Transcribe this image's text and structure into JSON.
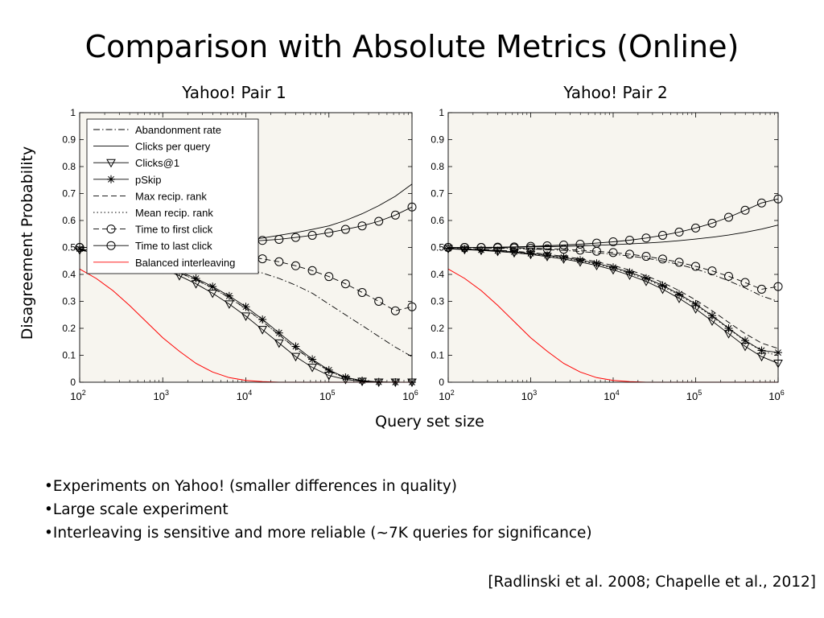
{
  "slide": {
    "title": "Comparison with Absolute Metrics (Online)",
    "bullets": [
      "•Experiments on Yahoo!  (smaller differences in quality)",
      "•Large scale experiment",
      "•Interleaving is sensitive and more reliable  (~7K queries for significance)"
    ],
    "citation": "[Radlinski et al. 2008; Chapelle et al., 2012]"
  },
  "chart_data": [
    {
      "type": "line",
      "title": "Yahoo! Pair 1",
      "xlabel": "Query set size",
      "ylabel": "Disagreement Probability",
      "xscale": "log",
      "xlim": [
        100,
        1000000
      ],
      "ylim": [
        0,
        1
      ],
      "xticks": [
        {
          "base": "10",
          "exp": "2"
        },
        {
          "base": "10",
          "exp": "3"
        },
        {
          "base": "10",
          "exp": "4"
        },
        {
          "base": "10",
          "exp": "5"
        },
        {
          "base": "10",
          "exp": "6"
        }
      ],
      "yticks": [
        "0",
        "0.1",
        "0.2",
        "0.3",
        "0.4",
        "0.5",
        "0.6",
        "0.7",
        "0.8",
        "0.9",
        "1"
      ],
      "legend_position": "top-left",
      "x": [
        100,
        158,
        251,
        398,
        631,
        1000,
        1585,
        2512,
        3981,
        6310,
        10000,
        15849,
        25119,
        39811,
        63096,
        100000,
        158489,
        251189,
        398107,
        630957,
        1000000
      ],
      "series": [
        {
          "name": "Abandonment rate",
          "style": "dashdot",
          "marker": "none",
          "color": "#000000",
          "values": [
            0.49,
            0.485,
            0.48,
            0.475,
            0.47,
            0.465,
            0.46,
            0.45,
            0.44,
            0.43,
            0.42,
            0.405,
            0.385,
            0.36,
            0.33,
            0.29,
            0.25,
            0.21,
            0.17,
            0.13,
            0.095
          ]
        },
        {
          "name": "Clicks per query",
          "style": "solid",
          "marker": "none",
          "color": "#000000",
          "values": [
            0.5,
            0.5,
            0.5,
            0.502,
            0.504,
            0.507,
            0.51,
            0.513,
            0.517,
            0.522,
            0.528,
            0.535,
            0.545,
            0.555,
            0.567,
            0.58,
            0.6,
            0.625,
            0.655,
            0.69,
            0.735
          ]
        },
        {
          "name": "Clicks@1",
          "style": "solid",
          "marker": "triangle",
          "color": "#000000",
          "values": [
            0.49,
            0.48,
            0.47,
            0.455,
            0.44,
            0.42,
            0.395,
            0.365,
            0.33,
            0.29,
            0.245,
            0.195,
            0.145,
            0.095,
            0.055,
            0.025,
            0.01,
            0.003,
            0.0,
            0.0,
            0.0
          ]
        },
        {
          "name": "pSkip",
          "style": "solid",
          "marker": "star",
          "color": "#000000",
          "values": [
            0.495,
            0.485,
            0.475,
            0.462,
            0.448,
            0.43,
            0.41,
            0.385,
            0.355,
            0.32,
            0.28,
            0.233,
            0.183,
            0.133,
            0.085,
            0.045,
            0.018,
            0.006,
            0.001,
            0.0,
            0.0
          ]
        },
        {
          "name": "Max recip. rank",
          "style": "dashed",
          "marker": "none",
          "color": "#000000",
          "values": [
            0.493,
            0.483,
            0.473,
            0.46,
            0.446,
            0.428,
            0.406,
            0.38,
            0.35,
            0.314,
            0.273,
            0.226,
            0.176,
            0.126,
            0.08,
            0.042,
            0.016,
            0.005,
            0.001,
            0.0,
            0.0
          ]
        },
        {
          "name": "Mean recip. rank",
          "style": "dotted",
          "marker": "none",
          "color": "#000000",
          "values": [
            0.492,
            0.482,
            0.472,
            0.459,
            0.445,
            0.427,
            0.405,
            0.379,
            0.349,
            0.313,
            0.272,
            0.225,
            0.175,
            0.125,
            0.079,
            0.041,
            0.015,
            0.005,
            0.001,
            0.0,
            0.0
          ]
        },
        {
          "name": "Time to first click",
          "style": "dashed",
          "marker": "circle",
          "color": "#000000",
          "values": [
            0.5,
            0.5,
            0.5,
            0.497,
            0.494,
            0.49,
            0.487,
            0.483,
            0.478,
            0.472,
            0.465,
            0.458,
            0.447,
            0.432,
            0.414,
            0.392,
            0.365,
            0.333,
            0.3,
            0.265,
            0.28
          ]
        },
        {
          "name": "Time to last click",
          "style": "solid",
          "marker": "circle",
          "color": "#000000",
          "values": [
            0.5,
            0.5,
            0.5,
            0.502,
            0.504,
            0.507,
            0.51,
            0.513,
            0.516,
            0.519,
            0.522,
            0.526,
            0.53,
            0.537,
            0.545,
            0.555,
            0.567,
            0.58,
            0.597,
            0.62,
            0.65
          ]
        },
        {
          "name": "Balanced interleaving",
          "style": "solid",
          "marker": "none",
          "color": "#ff0000",
          "values": [
            0.42,
            0.385,
            0.34,
            0.285,
            0.225,
            0.165,
            0.115,
            0.07,
            0.038,
            0.017,
            0.007,
            0.002,
            0.0,
            0.0,
            0.0,
            0.0,
            0.0,
            0.0,
            0.0,
            0.0,
            0.0
          ]
        }
      ]
    },
    {
      "type": "line",
      "title": "Yahoo! Pair 2",
      "xlabel": "Query set size",
      "xscale": "log",
      "xlim": [
        100,
        1000000
      ],
      "ylim": [
        0,
        1
      ],
      "xticks": [
        {
          "base": "10",
          "exp": "2"
        },
        {
          "base": "10",
          "exp": "3"
        },
        {
          "base": "10",
          "exp": "4"
        },
        {
          "base": "10",
          "exp": "5"
        },
        {
          "base": "10",
          "exp": "6"
        }
      ],
      "yticks": [
        "0",
        "0.1",
        "0.2",
        "0.3",
        "0.4",
        "0.5",
        "0.6",
        "0.7",
        "0.8",
        "0.9",
        "1"
      ],
      "x": [
        100,
        158,
        251,
        398,
        631,
        1000,
        1585,
        2512,
        3981,
        6310,
        10000,
        15849,
        25119,
        39811,
        63096,
        100000,
        158489,
        251189,
        398107,
        630957,
        1000000
      ],
      "series": [
        {
          "name": "Abandonment rate",
          "style": "dashdot",
          "marker": "none",
          "color": "#000000",
          "values": [
            0.5,
            0.499,
            0.498,
            0.497,
            0.496,
            0.494,
            0.492,
            0.489,
            0.485,
            0.48,
            0.475,
            0.468,
            0.46,
            0.45,
            0.437,
            0.42,
            0.4,
            0.376,
            0.35,
            0.32,
            0.3
          ]
        },
        {
          "name": "Clicks per query",
          "style": "solid",
          "marker": "none",
          "color": "#000000",
          "values": [
            0.5,
            0.5,
            0.5,
            0.5,
            0.501,
            0.502,
            0.503,
            0.504,
            0.506,
            0.508,
            0.51,
            0.513,
            0.516,
            0.52,
            0.525,
            0.531,
            0.538,
            0.546,
            0.556,
            0.568,
            0.583
          ]
        },
        {
          "name": "Clicks@1",
          "style": "solid",
          "marker": "triangle",
          "color": "#000000",
          "values": [
            0.495,
            0.492,
            0.489,
            0.485,
            0.48,
            0.474,
            0.466,
            0.457,
            0.446,
            0.433,
            0.417,
            0.397,
            0.374,
            0.345,
            0.311,
            0.272,
            0.227,
            0.18,
            0.133,
            0.095,
            0.07
          ]
        },
        {
          "name": "pSkip",
          "style": "solid",
          "marker": "star",
          "color": "#000000",
          "values": [
            0.497,
            0.494,
            0.491,
            0.488,
            0.484,
            0.478,
            0.471,
            0.463,
            0.453,
            0.441,
            0.426,
            0.408,
            0.386,
            0.359,
            0.327,
            0.29,
            0.247,
            0.2,
            0.155,
            0.118,
            0.11
          ]
        },
        {
          "name": "Max recip. rank",
          "style": "dashed",
          "marker": "none",
          "color": "#000000",
          "values": [
            0.498,
            0.495,
            0.493,
            0.49,
            0.486,
            0.481,
            0.475,
            0.467,
            0.458,
            0.447,
            0.433,
            0.416,
            0.395,
            0.37,
            0.34,
            0.305,
            0.265,
            0.222,
            0.18,
            0.145,
            0.125
          ]
        },
        {
          "name": "Mean recip. rank",
          "style": "dotted",
          "marker": "none",
          "color": "#000000",
          "values": [
            0.496,
            0.493,
            0.49,
            0.486,
            0.482,
            0.476,
            0.469,
            0.46,
            0.45,
            0.438,
            0.423,
            0.404,
            0.382,
            0.355,
            0.323,
            0.286,
            0.244,
            0.198,
            0.153,
            0.116,
            0.098
          ]
        },
        {
          "name": "Time to first click",
          "style": "dashed",
          "marker": "circle",
          "color": "#000000",
          "values": [
            0.5,
            0.5,
            0.5,
            0.499,
            0.498,
            0.497,
            0.495,
            0.493,
            0.49,
            0.486,
            0.481,
            0.475,
            0.467,
            0.457,
            0.445,
            0.43,
            0.413,
            0.393,
            0.37,
            0.345,
            0.355
          ]
        },
        {
          "name": "Time to last click",
          "style": "solid",
          "marker": "circle",
          "color": "#000000",
          "values": [
            0.5,
            0.5,
            0.5,
            0.501,
            0.502,
            0.504,
            0.506,
            0.509,
            0.512,
            0.516,
            0.521,
            0.527,
            0.535,
            0.545,
            0.557,
            0.572,
            0.59,
            0.612,
            0.638,
            0.665,
            0.68
          ]
        },
        {
          "name": "Balanced interleaving",
          "style": "solid",
          "marker": "none",
          "color": "#ff0000",
          "values": [
            0.42,
            0.385,
            0.34,
            0.285,
            0.225,
            0.165,
            0.115,
            0.07,
            0.038,
            0.017,
            0.007,
            0.002,
            0.0,
            0.0,
            0.0,
            0.0,
            0.0,
            0.0,
            0.0,
            0.0,
            0.0
          ]
        }
      ]
    }
  ]
}
